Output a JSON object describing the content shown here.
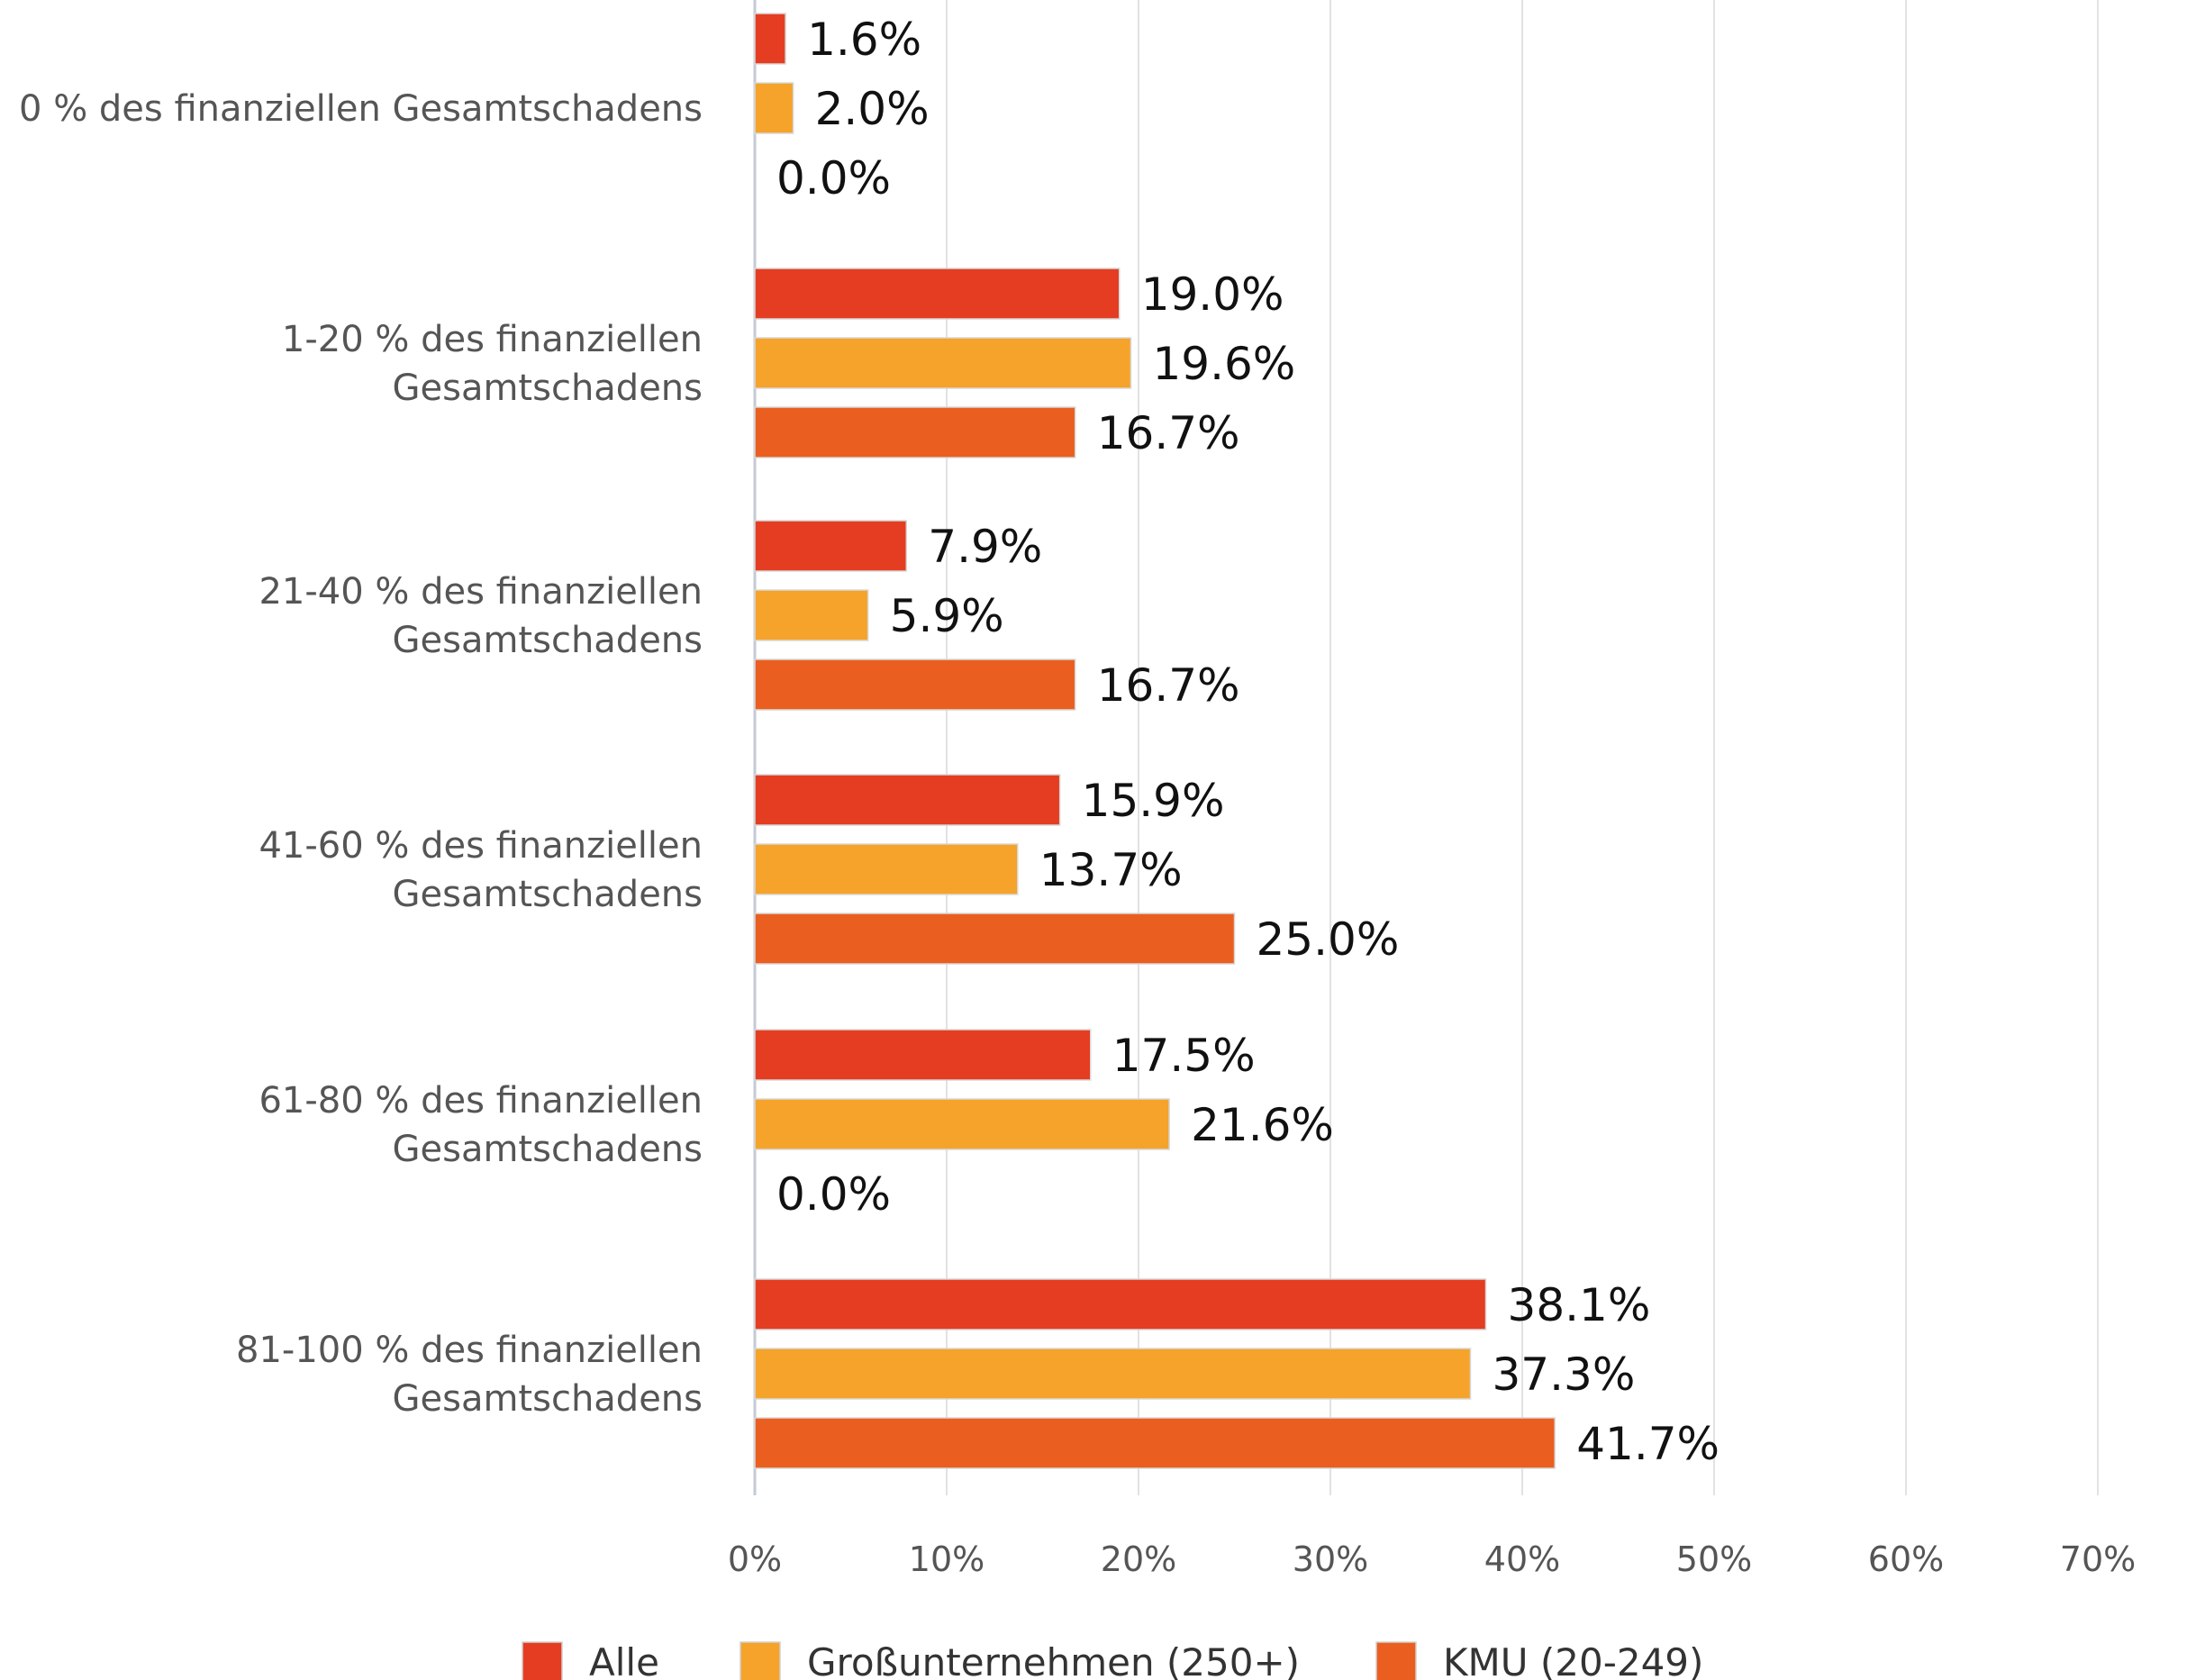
{
  "chart_data": {
    "type": "bar",
    "orientation": "horizontal",
    "categories": [
      [
        "0 % des finanziellen Gesamtschadens"
      ],
      [
        "1-20 % des finanziellen",
        "Gesamtschadens"
      ],
      [
        "21-40 % des finanziellen",
        "Gesamtschadens"
      ],
      [
        "41-60 % des finanziellen",
        "Gesamtschadens"
      ],
      [
        "61-80 % des finanziellen",
        "Gesamtschadens"
      ],
      [
        "81-100 % des finanziellen",
        "Gesamtschadens"
      ]
    ],
    "series": [
      {
        "name": "Alle",
        "color": "#e43d22",
        "values": [
          1.6,
          19.0,
          7.9,
          15.9,
          17.5,
          38.1
        ],
        "labels": [
          "1.6%",
          "19.0%",
          "7.9%",
          "15.9%",
          "17.5%",
          "38.1%"
        ]
      },
      {
        "name": "Großunternehmen (250+)",
        "color": "#f5a32a",
        "values": [
          2.0,
          19.6,
          5.9,
          13.7,
          21.6,
          37.3
        ],
        "labels": [
          "2.0%",
          "19.6%",
          "5.9%",
          "13.7%",
          "21.6%",
          "37.3%"
        ]
      },
      {
        "name": "KMU (20-249)",
        "color": "#ea5f20",
        "values": [
          0.0,
          16.7,
          16.7,
          25.0,
          0.0,
          41.7
        ],
        "labels": [
          "0.0%",
          "16.7%",
          "16.7%",
          "25.0%",
          "0.0%",
          "41.7%"
        ]
      }
    ],
    "x_ticks": [
      "0%",
      "10%",
      "20%",
      "30%",
      "40%",
      "50%",
      "60%",
      "70%"
    ],
    "xlim": [
      0,
      70
    ],
    "grid": true,
    "legend_position": "bottom",
    "title": "",
    "xlabel": "",
    "ylabel": ""
  }
}
